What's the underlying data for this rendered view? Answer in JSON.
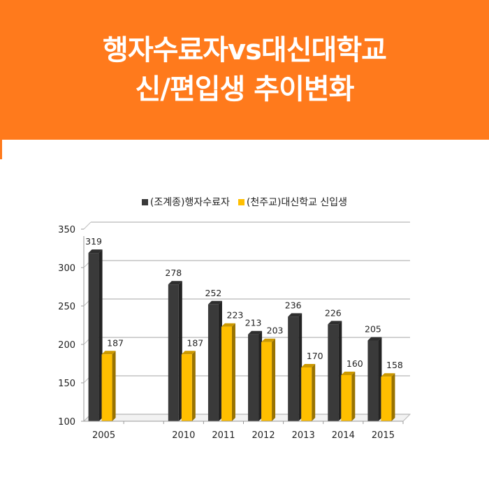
{
  "header": {
    "title_line1": "행자수료자vs대신대학교",
    "title_line2": "신/편입생 추이변화",
    "background": "#ff7a1c"
  },
  "chart_data": {
    "type": "bar",
    "categories": [
      "2005",
      "",
      "2010",
      "2011",
      "2012",
      "2013",
      "2014",
      "2015"
    ],
    "series": [
      {
        "name": "(조계종)행자수료자",
        "values": [
          319,
          null,
          278,
          252,
          213,
          236,
          226,
          205
        ],
        "color": "#3a3a3a"
      },
      {
        "name": "(천주교)대신학교 신입생",
        "values": [
          187,
          null,
          187,
          223,
          203,
          170,
          160,
          158
        ],
        "color": "#ffbf00"
      }
    ],
    "ylim": [
      100,
      350
    ],
    "yticks": [
      100,
      150,
      200,
      250,
      300,
      350
    ],
    "xlabel": "",
    "ylabel": "",
    "grid": true,
    "legend": "top",
    "style": "3d"
  }
}
